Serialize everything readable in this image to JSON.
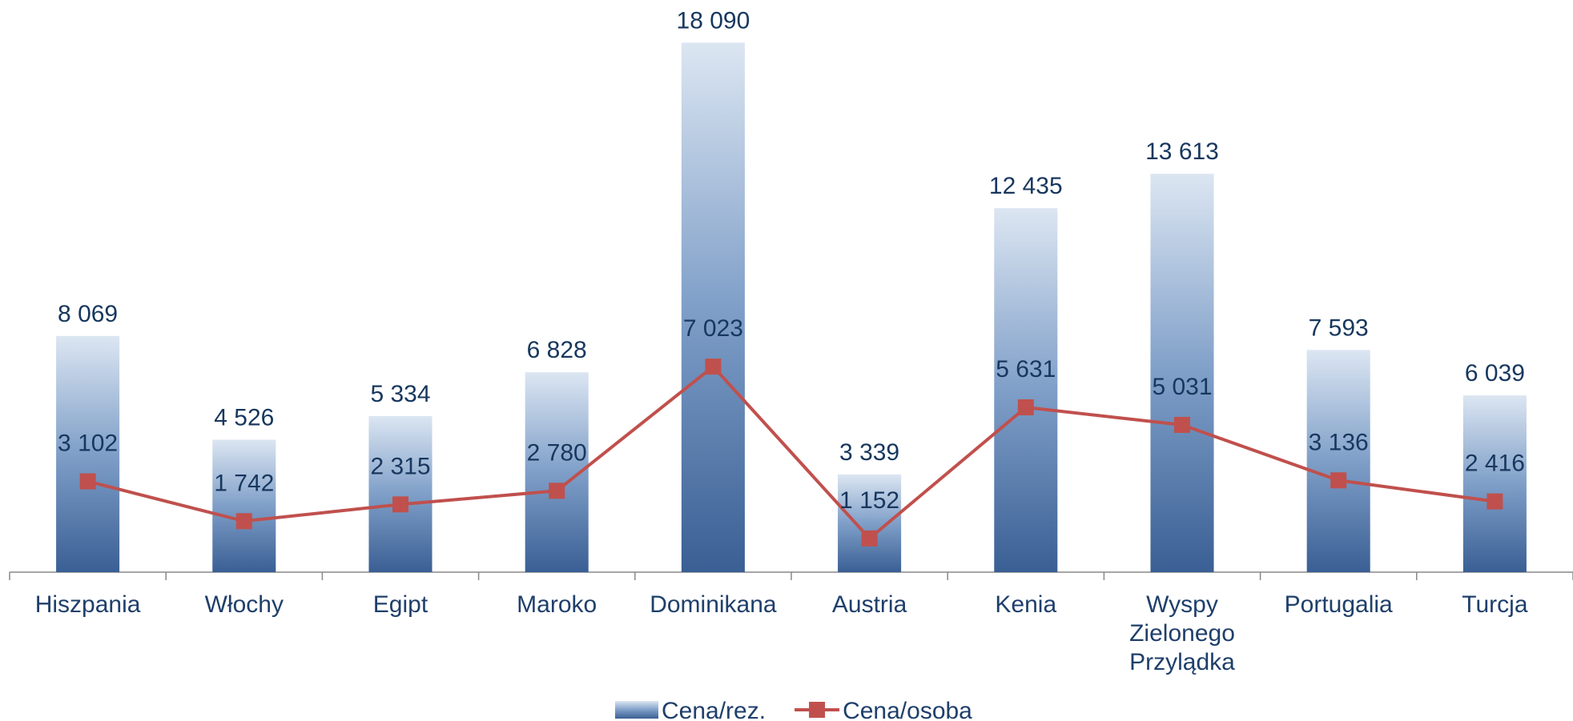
{
  "chart_data": {
    "type": "bar",
    "categories": [
      "Hiszpania",
      "Włochy",
      "Egipt",
      "Maroko",
      "Dominikana",
      "Austria",
      "Kenia",
      "Wyspy Zielonego Przylądka",
      "Portugalia",
      "Turcja"
    ],
    "series": [
      {
        "name": "Cena/rez.",
        "type": "bar",
        "color": "#3a5f94",
        "values": [
          8069,
          4526,
          5334,
          6828,
          18090,
          3339,
          12435,
          13613,
          7593,
          6039
        ],
        "value_labels": [
          "8 069",
          "4 526",
          "5 334",
          "6 828",
          "18 090",
          "3 339",
          "12 435",
          "13 613",
          "7 593",
          "6 039"
        ]
      },
      {
        "name": "Cena/osoba",
        "type": "line",
        "color": "#c0504d",
        "values": [
          3102,
          1742,
          2315,
          2780,
          7023,
          1152,
          5631,
          5031,
          3136,
          2416
        ],
        "value_labels": [
          "3 102",
          "1 742",
          "2 315",
          "2 780",
          "7 023",
          "1 152",
          "5 631",
          "5 031",
          "3 136",
          "2 416"
        ]
      }
    ],
    "ylim": [
      0,
      19000
    ],
    "legend": "bottom"
  }
}
